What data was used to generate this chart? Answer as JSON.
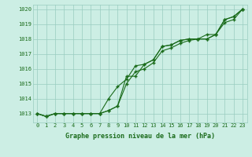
{
  "x": [
    0,
    1,
    2,
    3,
    4,
    5,
    6,
    7,
    8,
    9,
    10,
    11,
    12,
    13,
    14,
    15,
    16,
    17,
    18,
    19,
    20,
    21,
    22,
    23
  ],
  "line1": [
    1013.0,
    1012.8,
    1013.0,
    1013.0,
    1013.0,
    1013.0,
    1013.0,
    1013.0,
    1013.2,
    1013.5,
    1015.5,
    1015.5,
    1016.3,
    1016.6,
    1017.5,
    1017.6,
    1017.9,
    1018.0,
    1018.0,
    1018.0,
    1018.3,
    1019.3,
    1019.5,
    1020.0
  ],
  "line2": [
    1013.0,
    1012.8,
    1013.0,
    1013.0,
    1013.0,
    1013.0,
    1013.0,
    1013.0,
    1013.2,
    1013.5,
    1015.0,
    1015.8,
    1016.0,
    1016.4,
    1017.2,
    1017.4,
    1017.7,
    1017.9,
    1018.0,
    1018.0,
    1018.3,
    1019.1,
    1019.3,
    1020.0
  ],
  "line3": [
    1013.0,
    1012.8,
    1013.0,
    1013.0,
    1013.0,
    1013.0,
    1013.0,
    1013.0,
    1014.0,
    1014.8,
    1015.3,
    1016.2,
    1016.3,
    1016.6,
    1017.5,
    1017.6,
    1017.9,
    1018.0,
    1018.0,
    1018.3,
    1018.3,
    1019.3,
    1019.5,
    1020.0
  ],
  "line_color": "#1a6b1a",
  "bg_color": "#cceee4",
  "grid_color": "#99ccc0",
  "ylabel_ticks": [
    1013,
    1014,
    1015,
    1016,
    1017,
    1018,
    1019,
    1020
  ],
  "xlabel_label": "Graphe pression niveau de la mer (hPa)",
  "ylim": [
    1012.4,
    1020.3
  ],
  "xlim": [
    -0.5,
    23.5
  ],
  "marker": "+",
  "markersize": 3.5,
  "linewidth": 0.8,
  "tick_fontsize": 5.0,
  "xlabel_fontsize": 6.0
}
